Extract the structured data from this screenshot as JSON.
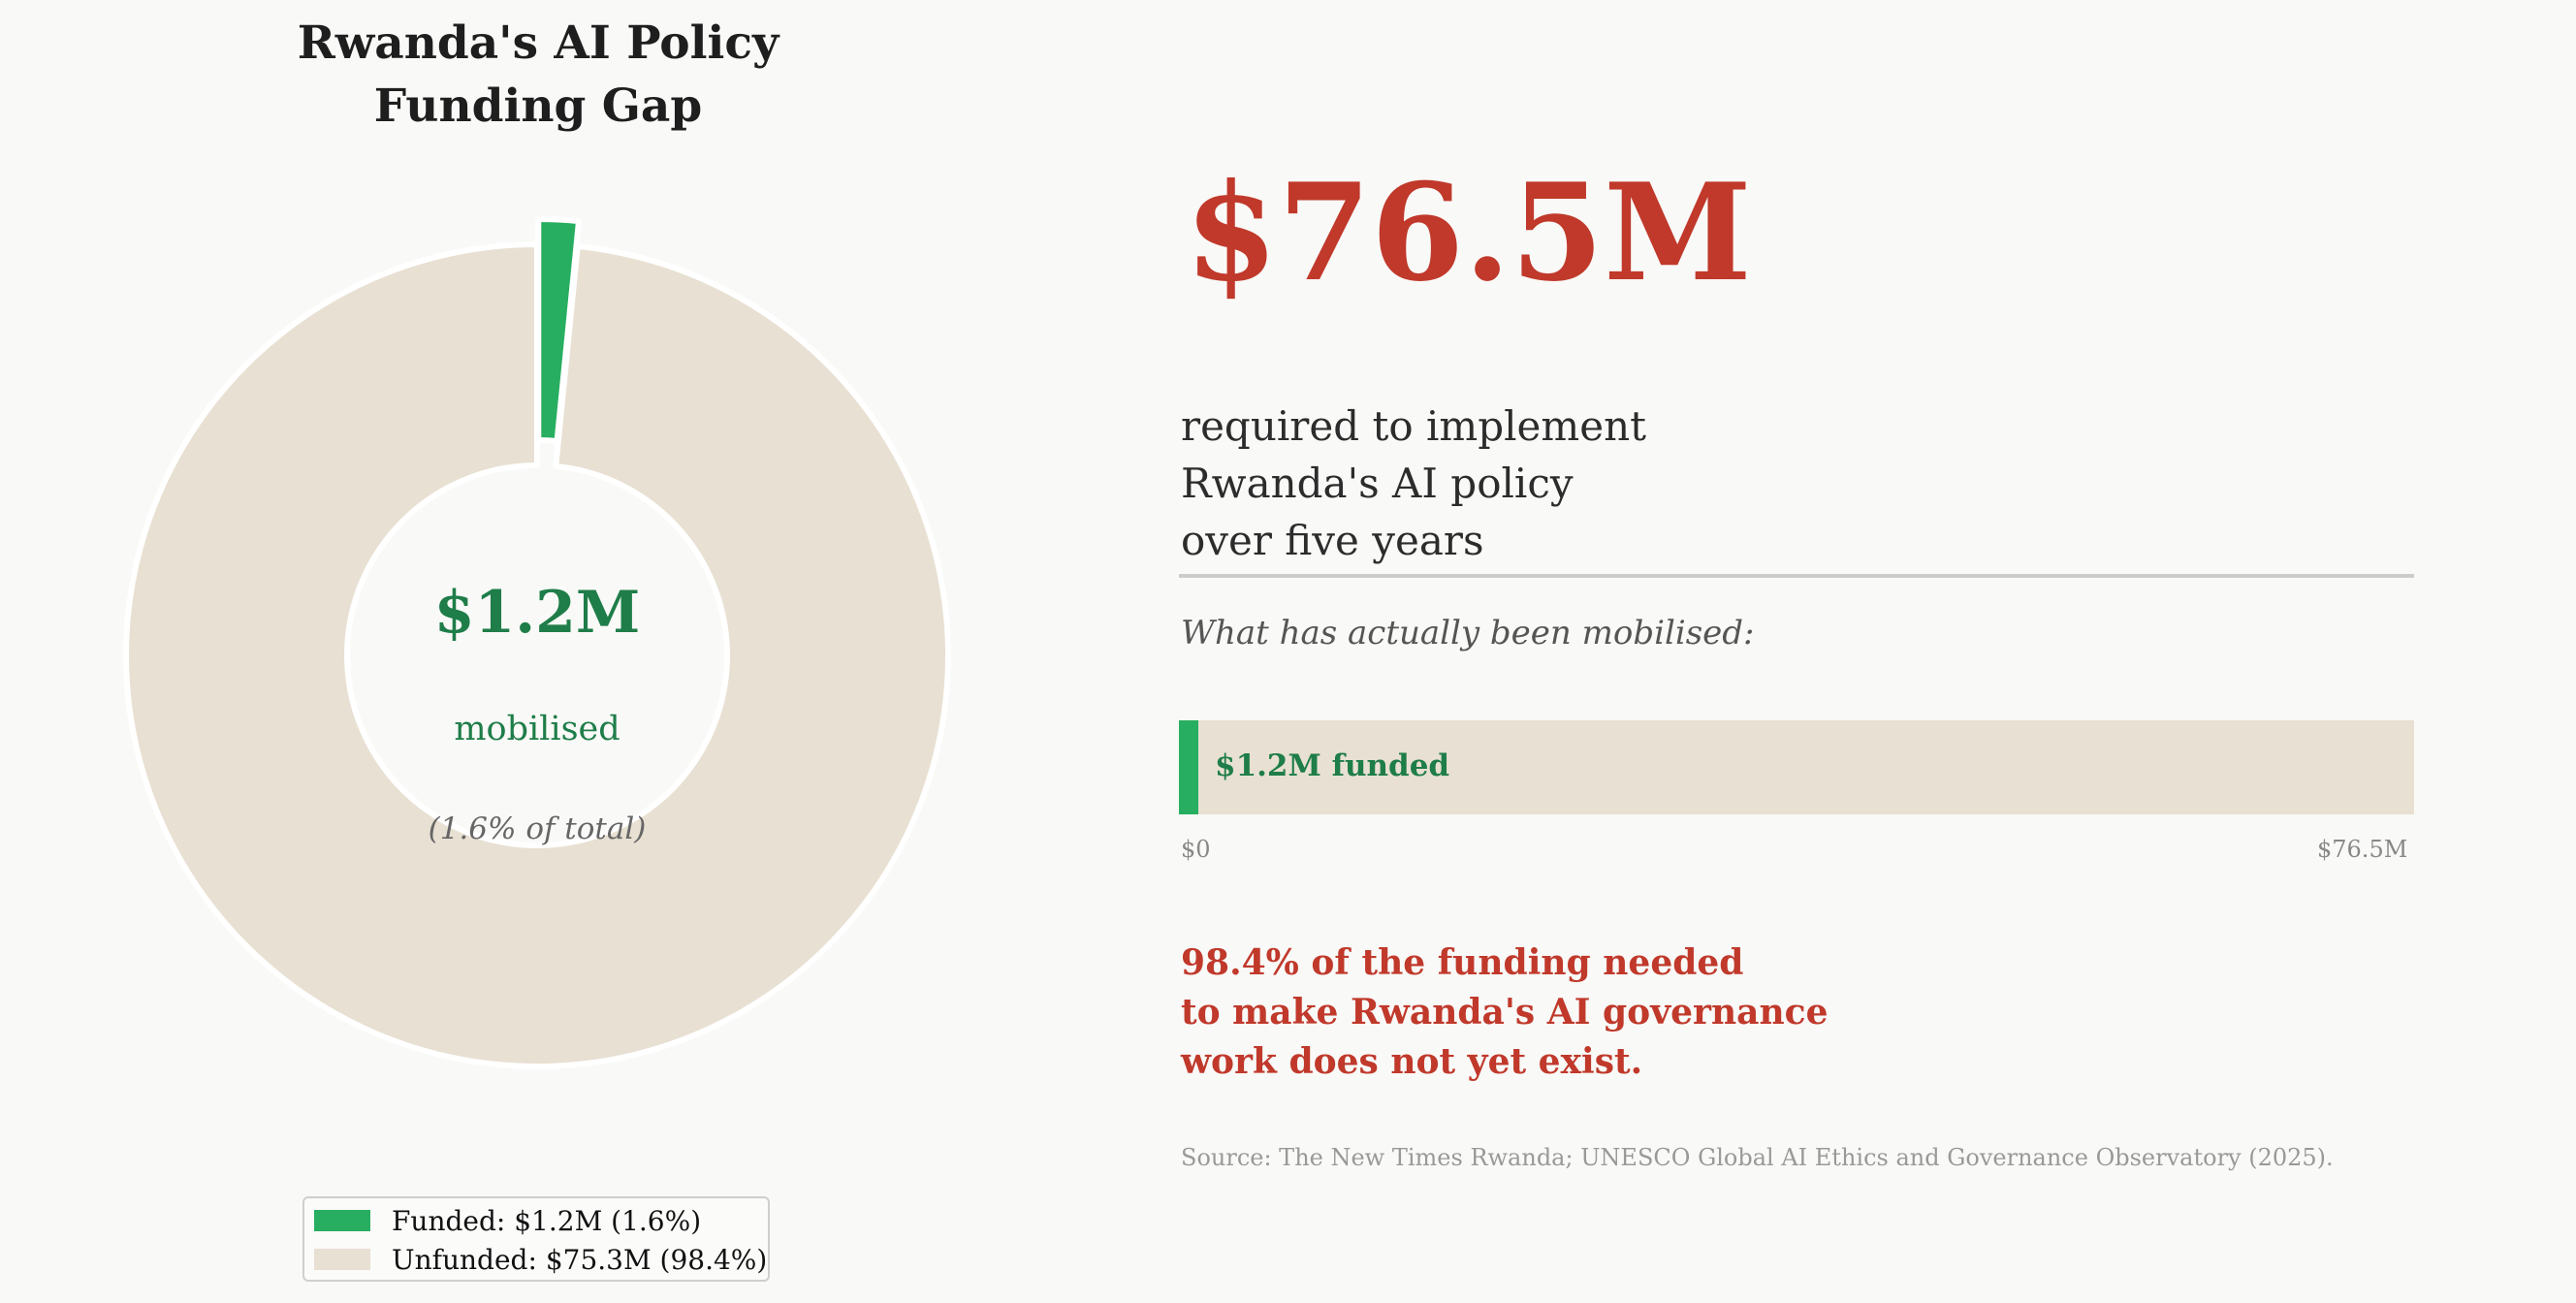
{
  "chart_data": {
    "type": "pie",
    "title": "Rwanda's AI Policy\nFunding Gap",
    "units": "$M",
    "total": 76.5,
    "slices": [
      {
        "label": "Funded",
        "value": 1.2,
        "percent": 1.6,
        "color": "#27ae60",
        "exploded": true
      },
      {
        "label": "Unfunded",
        "value": 75.3,
        "percent": 98.4,
        "color": "#e8e0d2"
      }
    ],
    "legend": {
      "placement": "bottom-center",
      "entries": [
        "Funded: $1.2M (1.6%)",
        "Unfunded: $75.3M (98.4%)"
      ]
    },
    "center": {
      "value": "$1.2M",
      "label": "mobilised",
      "note": "(1.6% of total)"
    }
  },
  "panel": {
    "big_number": "$76.5M",
    "required_text": "required to implement\nRwanda's AI policy\nover five years",
    "mobilised_prompt": "What has actually been mobilised:",
    "progress": {
      "value": 1.2,
      "max": 76.5,
      "fraction": 0.0157,
      "label": "$1.2M funded",
      "min_label": "$0",
      "max_label": "$76.5M"
    },
    "gap_statement": "98.4% of the funding needed\nto make Rwanda's AI governance\nwork does not yet exist.",
    "source": "Source: The New Times Rwanda; UNESCO Global AI Ethics and Governance Observatory (2025)."
  },
  "colors": {
    "accent_red": "#c0392b",
    "funded_green": "#27ae60",
    "funded_text_green": "#1e7d48",
    "unfunded_beige": "#e8e0d2",
    "background": "#f9f9f7"
  }
}
